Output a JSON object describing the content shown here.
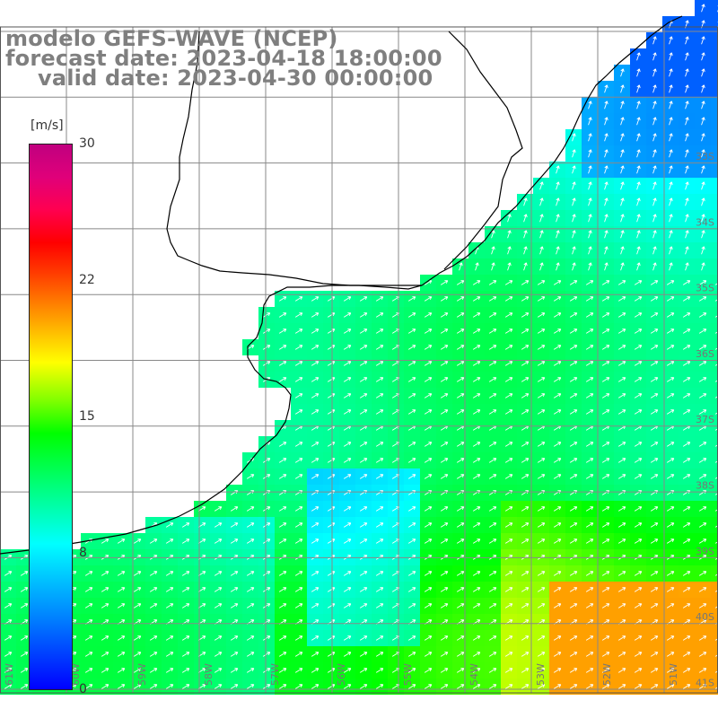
{
  "title": {
    "line1": "modelo GEFS-WAVE (NCEP)",
    "line2": "forecast date: 2023-04-18 18:00:00",
    "line3": "valid date: 2023-04-30 00:00:00"
  },
  "colorbar": {
    "unit": "[m/s]",
    "min": 0,
    "max": 30,
    "ticks": [
      {
        "value": 30,
        "label": "30"
      },
      {
        "value": 22,
        "label": "22"
      },
      {
        "value": 15,
        "label": "15"
      },
      {
        "value": 8,
        "label": "8"
      },
      {
        "value": 0,
        "label": "0"
      }
    ],
    "colors": [
      "#0000ff",
      "#0080ff",
      "#00ffff",
      "#00ff00",
      "#80ff00",
      "#ffff00",
      "#ffa000",
      "#ff0000",
      "#c0007f"
    ]
  },
  "map": {
    "latitude_labels": [
      "33S",
      "34S",
      "35S",
      "36S",
      "37S",
      "38S",
      "39S",
      "40S",
      "41S"
    ],
    "longitude_labels": [
      "61W",
      "60W",
      "59W",
      "58W",
      "57W",
      "56W",
      "55W",
      "54W",
      "53W",
      "52W",
      "51W"
    ],
    "land_color": "#ffffff",
    "grid_color": "#8a8a8a",
    "arrow_color": "#ffffff"
  }
}
